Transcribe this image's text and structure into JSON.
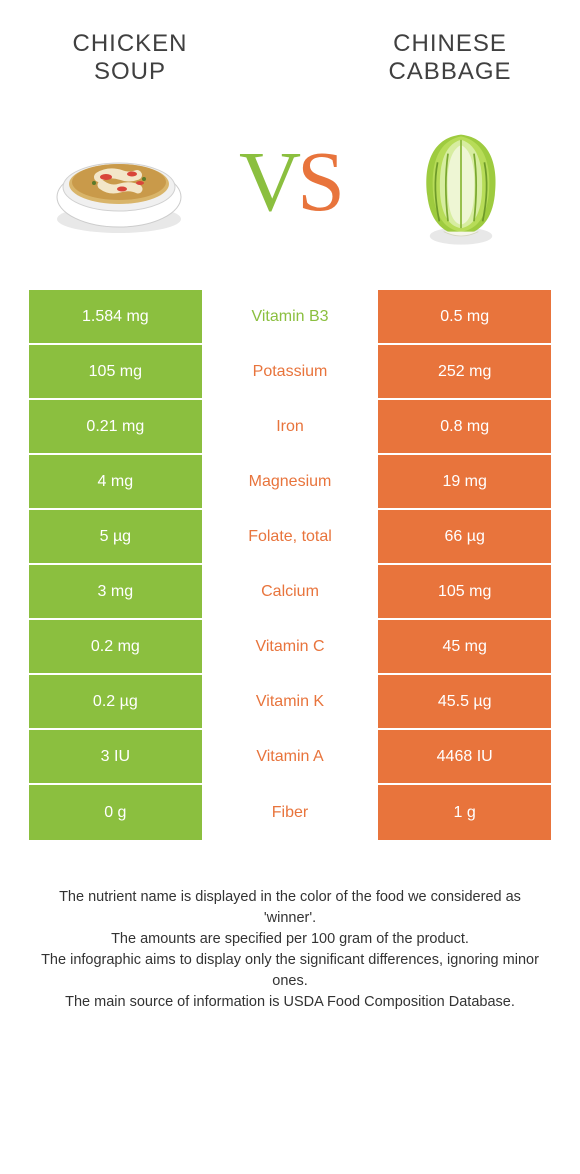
{
  "colors": {
    "left": "#8bbf3f",
    "right": "#e8743c",
    "text": "#333333",
    "bg": "#ffffff"
  },
  "foods": {
    "left_title_line1": "CHICKEN",
    "left_title_line2": "SOUP",
    "right_title_line1": "CHINESE",
    "right_title_line2": "CABBAGE"
  },
  "vs_label": "VS",
  "rows": [
    {
      "left": "1.584 mg",
      "nutrient": "Vitamin B3",
      "right": "0.5 mg",
      "winner": "left"
    },
    {
      "left": "105 mg",
      "nutrient": "Potassium",
      "right": "252 mg",
      "winner": "right"
    },
    {
      "left": "0.21 mg",
      "nutrient": "Iron",
      "right": "0.8 mg",
      "winner": "right"
    },
    {
      "left": "4 mg",
      "nutrient": "Magnesium",
      "right": "19 mg",
      "winner": "right"
    },
    {
      "left": "5 µg",
      "nutrient": "Folate, total",
      "right": "66 µg",
      "winner": "right"
    },
    {
      "left": "3 mg",
      "nutrient": "Calcium",
      "right": "105 mg",
      "winner": "right"
    },
    {
      "left": "0.2 mg",
      "nutrient": "Vitamin C",
      "right": "45 mg",
      "winner": "right"
    },
    {
      "left": "0.2 µg",
      "nutrient": "Vitamin K",
      "right": "45.5 µg",
      "winner": "right"
    },
    {
      "left": "3 IU",
      "nutrient": "Vitamin A",
      "right": "4468 IU",
      "winner": "right"
    },
    {
      "left": "0 g",
      "nutrient": "Fiber",
      "right": "1 g",
      "winner": "right"
    }
  ],
  "footnotes": [
    "The nutrient name is displayed in the color of the food we considered as 'winner'.",
    "The amounts are specified per 100 gram of the product.",
    "The infographic aims to display only the significant differences, ignoring minor ones.",
    "The main source of information is USDA Food Composition Database."
  ]
}
